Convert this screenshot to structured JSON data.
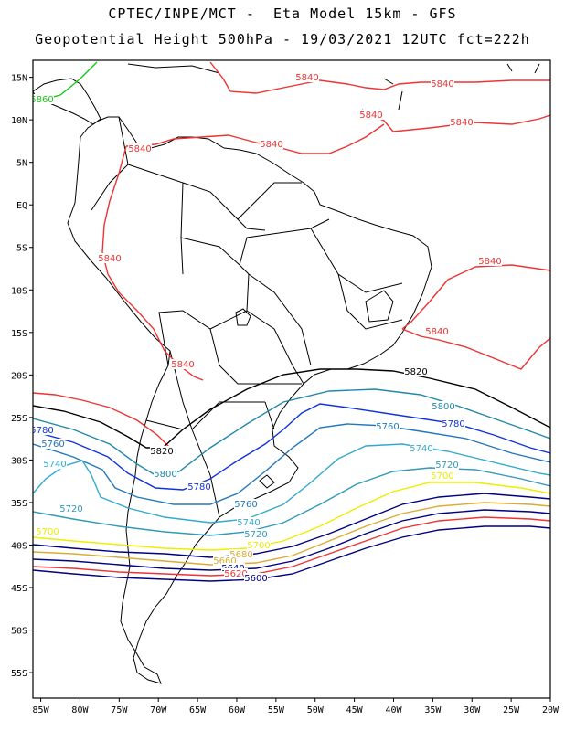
{
  "header": {
    "line1": "CPTEC/INPE/MCT -  Eta Model 15km - GFS",
    "line2": "Geopotential Height 500hPa - 19/03/2021 12UTC fct=222h"
  },
  "axes": {
    "lon_labels": [
      "85W",
      "80W",
      "75W",
      "70W",
      "65W",
      "60W",
      "55W",
      "50W",
      "45W",
      "40W",
      "35W",
      "30W",
      "25W",
      "20W"
    ],
    "lat_labels": [
      "15N",
      "10N",
      "5N",
      "EQ",
      "5S",
      "10S",
      "15S",
      "20S",
      "25S",
      "30S",
      "35S",
      "40S",
      "45S",
      "50S",
      "55S"
    ],
    "lon_range": [
      -86,
      -20
    ],
    "lat_range": [
      17,
      -58
    ]
  },
  "colors": {
    "5840": "#ee3333",
    "5860": "#11cc11",
    "5820": "#000000",
    "5800": "#2288aa",
    "5780": "#1133dd",
    "5760": "#2277bb",
    "5740": "#33aacc",
    "5720": "#3399bb",
    "5700": "#eeee00",
    "5680": "#ddaa33",
    "5640": "#ee3333",
    "5620": "#ee3333",
    "5600": "#000080",
    "coast": "#000000"
  },
  "contour_labels": [
    {
      "text": "5840",
      "color": "5840"
    },
    {
      "text": "5840",
      "color": "5840"
    },
    {
      "text": "5840",
      "color": "5840"
    },
    {
      "text": "5840",
      "color": "5840"
    },
    {
      "text": "5840",
      "color": "5840"
    },
    {
      "text": "5840",
      "color": "5840"
    },
    {
      "text": "5840",
      "color": "5840"
    },
    {
      "text": "5840",
      "color": "5840"
    },
    {
      "text": "5840",
      "color": "5840"
    },
    {
      "text": "5840",
      "color": "5840"
    },
    {
      "text": "5860",
      "color": "5860"
    },
    {
      "text": "5820",
      "color": "5820"
    },
    {
      "text": "5820",
      "color": "5820"
    },
    {
      "text": "5800",
      "color": "5800"
    },
    {
      "text": "5800",
      "color": "5800"
    },
    {
      "text": "5780",
      "color": "5780"
    },
    {
      "text": "5780",
      "color": "5780"
    },
    {
      "text": "5780",
      "color": "5780"
    },
    {
      "text": "5760",
      "color": "5760"
    },
    {
      "text": "5760",
      "color": "5760"
    },
    {
      "text": "5760",
      "color": "5760"
    },
    {
      "text": "5740",
      "color": "5740"
    },
    {
      "text": "5740",
      "color": "5740"
    },
    {
      "text": "5740",
      "color": "5740"
    },
    {
      "text": "5720",
      "color": "5720"
    },
    {
      "text": "5720",
      "color": "5720"
    },
    {
      "text": "5720",
      "color": "5720"
    },
    {
      "text": "5700",
      "color": "5700"
    },
    {
      "text": "5700",
      "color": "5700"
    },
    {
      "text": "5700",
      "color": "5700"
    },
    {
      "text": "5680",
      "color": "5680"
    },
    {
      "text": "5660",
      "color": "5680"
    },
    {
      "text": "5640",
      "color": "5600"
    },
    {
      "text": "5620",
      "color": "5620"
    },
    {
      "text": "5600",
      "color": "5600"
    }
  ]
}
